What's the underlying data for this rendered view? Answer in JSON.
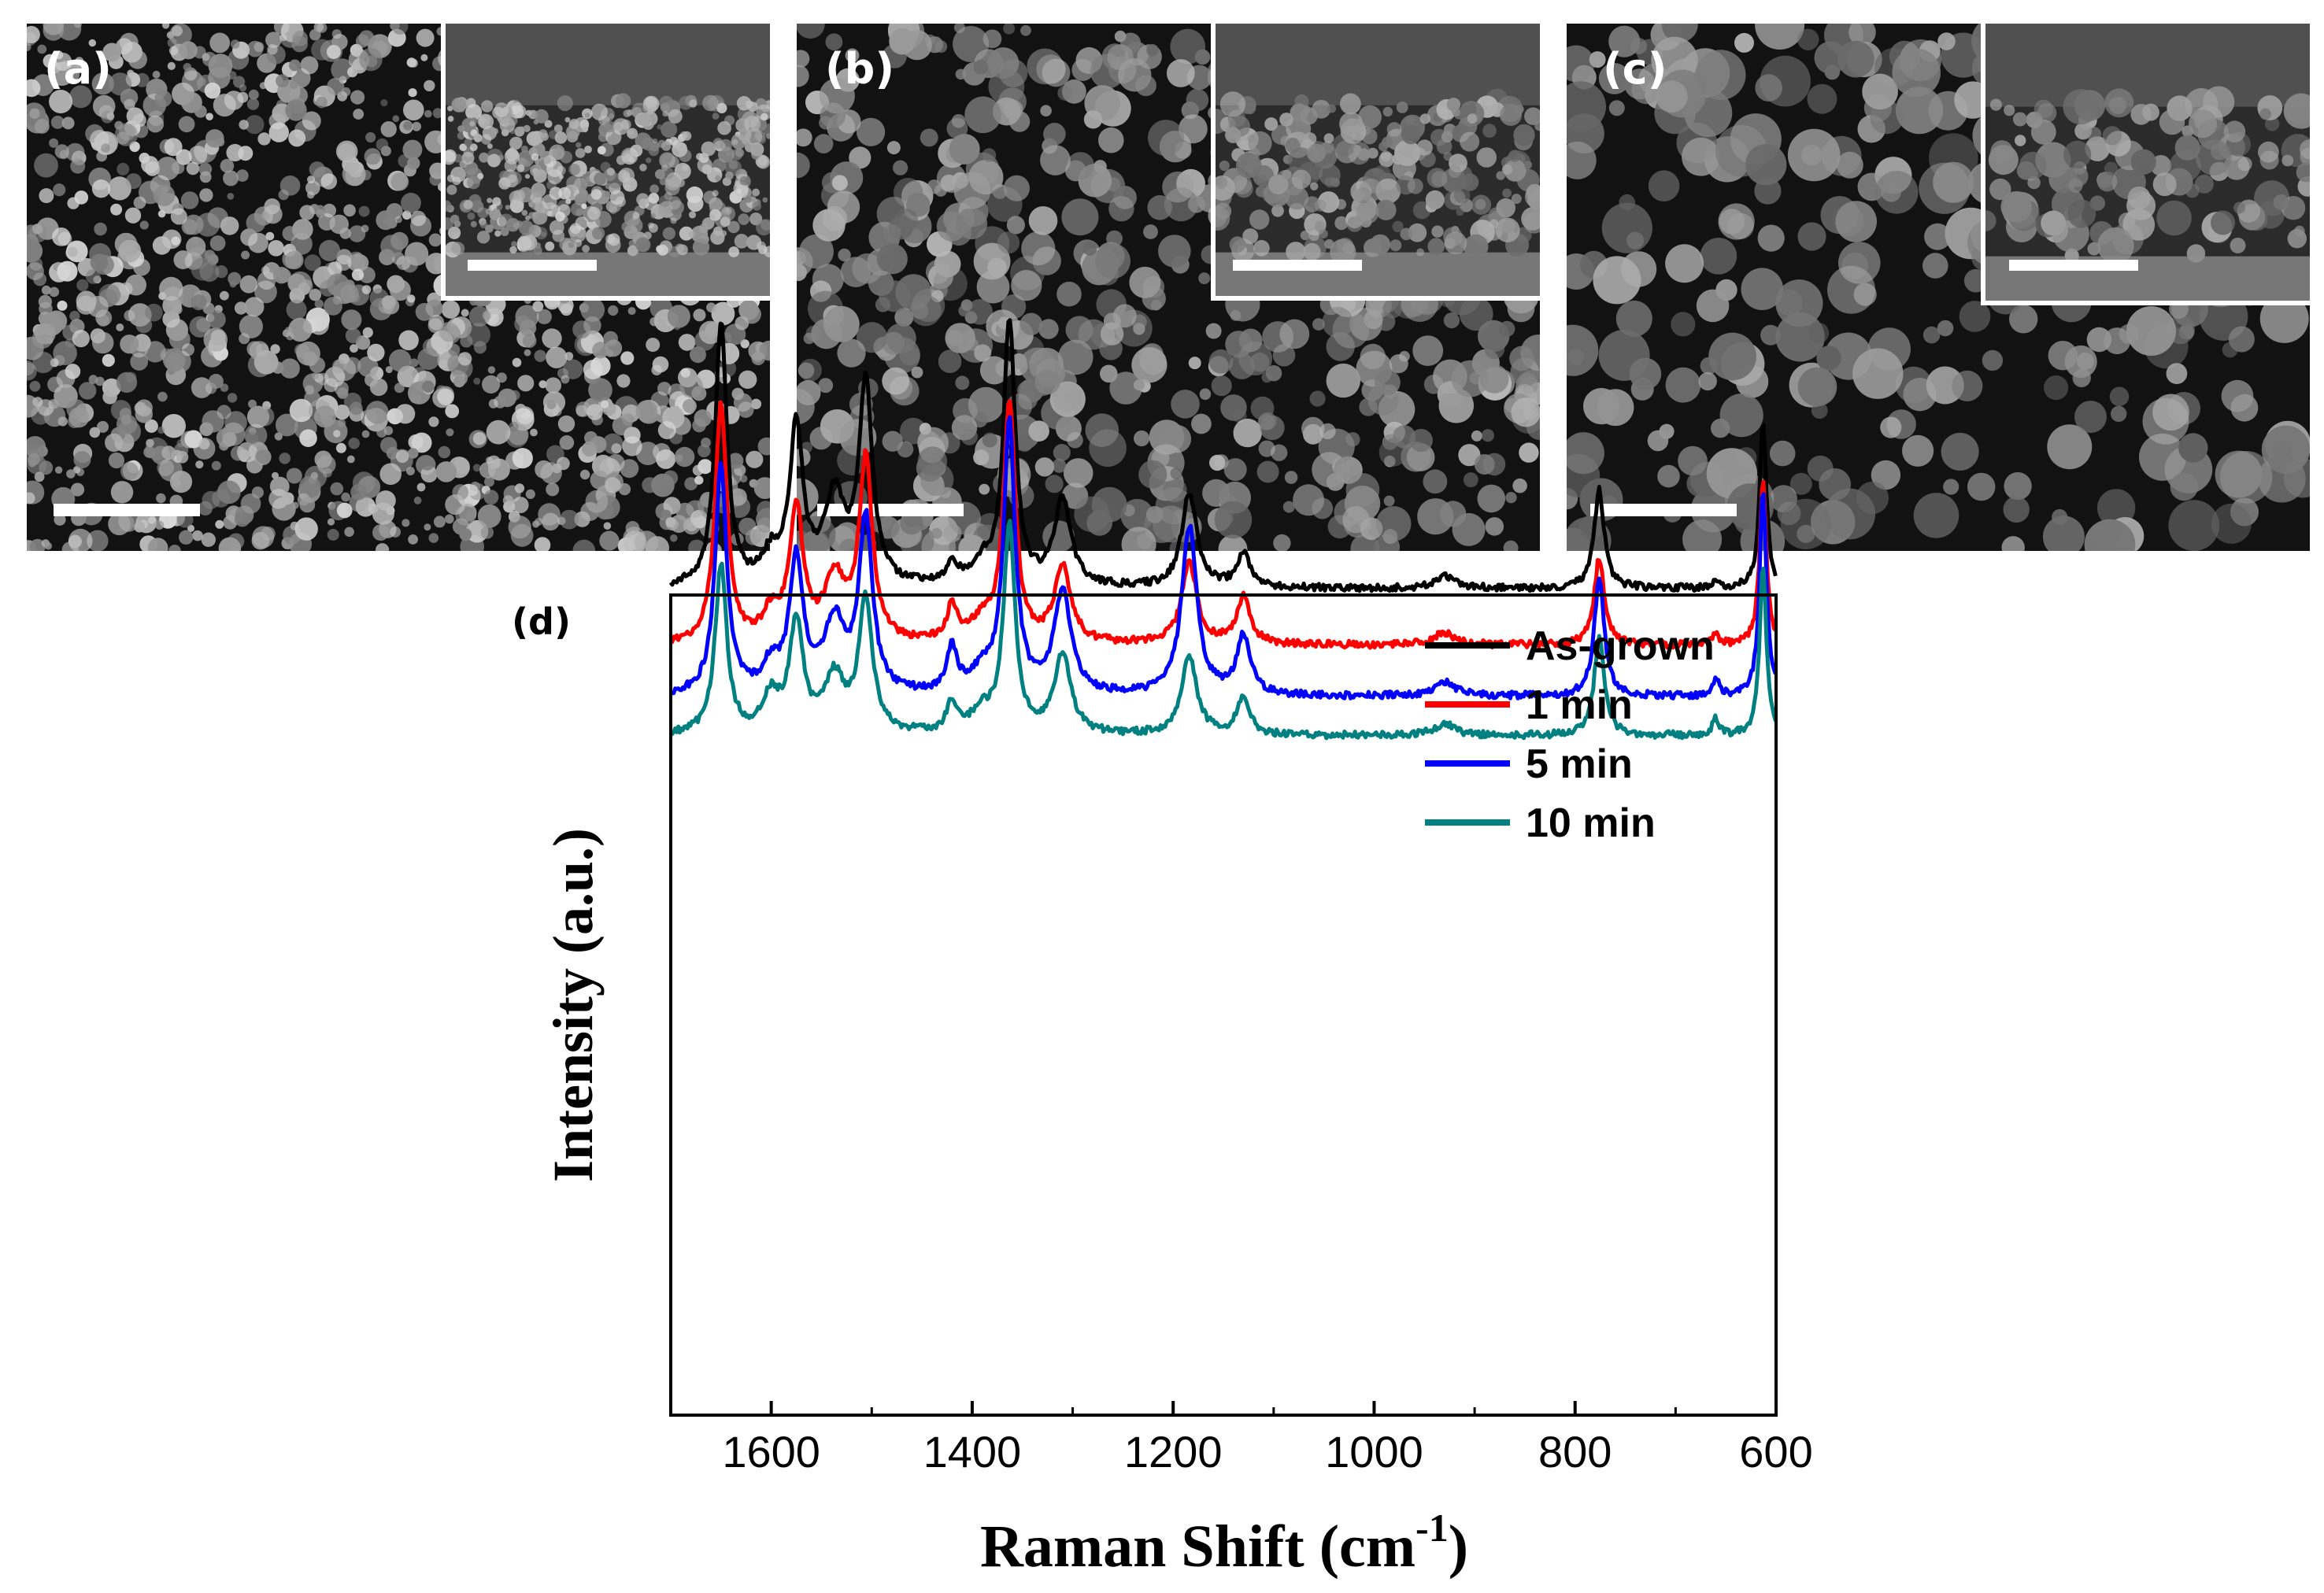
{
  "panels": [
    {
      "label": "(a)",
      "density": 1500,
      "blob": 11,
      "tone": 0.85
    },
    {
      "label": "(b)",
      "density": 700,
      "blob": 17,
      "tone": 0.72
    },
    {
      "label": "(c)",
      "density": 330,
      "blob": 24,
      "tone": 0.68
    }
  ],
  "chart_data": {
    "type": "line",
    "panel_label": "(d)",
    "xlabel": "Raman Shift (cm",
    "xlabel_sup": "-1",
    "xlabel_tail": ")",
    "ylabel": "Intensity (a.u.)",
    "xlim": [
      1700,
      600
    ],
    "xticks": [
      1600,
      1400,
      1200,
      1000,
      800,
      600
    ],
    "yticks_shown": false,
    "legend_position": "top-right",
    "peaks": [
      1650,
      1575,
      1537,
      1506,
      1420,
      1363,
      1310,
      1184,
      1130,
      930,
      776,
      660,
      613
    ],
    "series": [
      {
        "name": "As-grown",
        "color": "#000000",
        "baseline": 748,
        "peak_heights": [
          335,
          200,
          110,
          255,
          28,
          335,
          110,
          120,
          42,
          15,
          125,
          12,
          215
        ]
      },
      {
        "name": "1 min",
        "color": "#ff0000",
        "baseline": 820,
        "peak_heights": [
          305,
          170,
          80,
          230,
          45,
          305,
          95,
          105,
          60,
          16,
          110,
          13,
          210
        ]
      },
      {
        "name": "5 min",
        "color": "#0000ff",
        "baseline": 885,
        "peak_heights": [
          290,
          170,
          90,
          220,
          55,
          340,
          130,
          215,
          75,
          18,
          150,
          20,
          265
        ]
      },
      {
        "name": "10 min",
        "color": "#008080",
        "baseline": 935,
        "peak_heights": [
          215,
          140,
          70,
          170,
          38,
          260,
          100,
          100,
          45,
          15,
          125,
          20,
          215
        ]
      }
    ]
  }
}
